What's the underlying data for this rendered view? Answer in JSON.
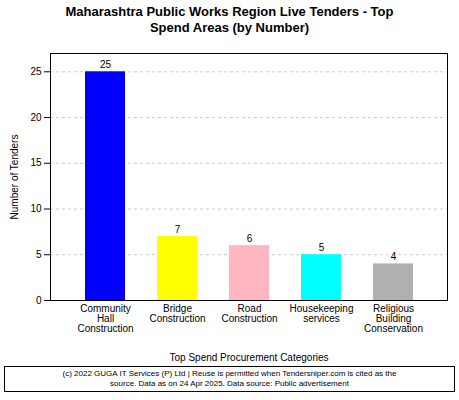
{
  "chart_data": {
    "type": "bar",
    "title": "Maharashtra Public Works Region Live Tenders - Top\nSpend Areas (by Number)",
    "categories": [
      "Community\nHall\nConstruction",
      "Bridge\nConstruction",
      "Road\nConstruction",
      "Housekeeping\nservices",
      "Religious\nBuilding\nConservation"
    ],
    "values": [
      25,
      7,
      6,
      5,
      4
    ],
    "colors": [
      "#0000FF",
      "#FFFF00",
      "#FFB6C1",
      "#00FFFF",
      "#B0B0B0"
    ],
    "ylabel": "Number of Tenders",
    "xlabel": "Top Spend Procurement Categories",
    "ylim": [
      0,
      27
    ],
    "yticks": [
      0,
      5,
      10,
      15,
      20,
      25
    ],
    "grid": true,
    "data_labels": true,
    "annotations": [
      "(c) 2022 GUGA IT Services (P) Ltd | Reuse is permitted when Tendersniper.com is cited as the\nsource. Data as on 24 Apr 2025. Data source: Public advertisement"
    ]
  }
}
